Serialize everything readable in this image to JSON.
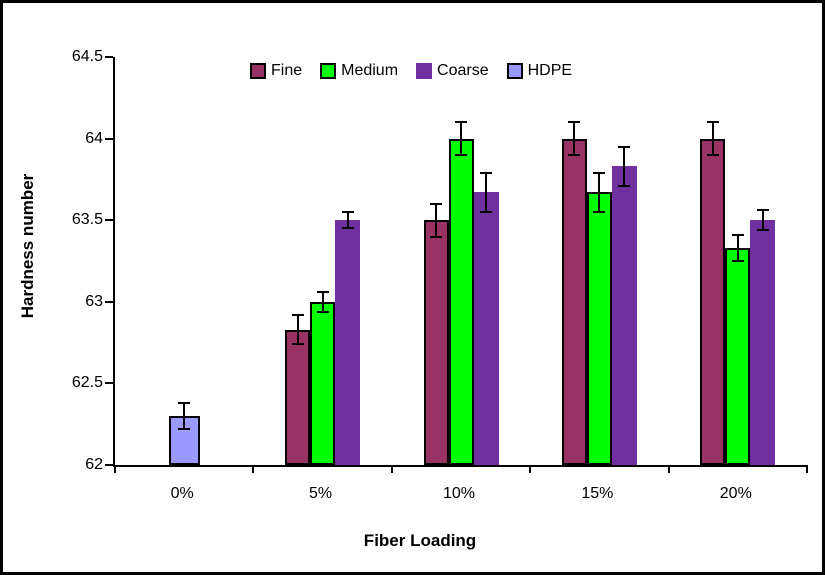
{
  "chart_data": {
    "type": "bar",
    "title": "",
    "xlabel": "Fiber Loading",
    "ylabel": "Hardness number",
    "categories": [
      "0%",
      "5%",
      "10%",
      "15%",
      "20%"
    ],
    "ylim": [
      62,
      64.5
    ],
    "ytick_step": 0.5,
    "ytick_labels": [
      "62",
      "62.5",
      "63",
      "63.5",
      "64",
      "64.5"
    ],
    "grid": false,
    "legend_position": "top-center",
    "error_bars": true,
    "axis_color": "#000000",
    "background_color": "#ffffff",
    "series": [
      {
        "name": "Fine",
        "color": "#993366",
        "border_color": "#000000",
        "values": [
          null,
          62.83,
          63.5,
          64.0,
          64.0
        ],
        "errors": [
          null,
          0.09,
          0.1,
          0.1,
          0.1
        ]
      },
      {
        "name": "Medium",
        "color": "#00FF00",
        "border_color": "#000000",
        "values": [
          null,
          63.0,
          64.0,
          63.67,
          63.33
        ],
        "errors": [
          null,
          0.06,
          0.1,
          0.12,
          0.08
        ]
      },
      {
        "name": "Coarse",
        "color": "#7030A0",
        "border_color": "#7030A0",
        "values": [
          null,
          63.5,
          63.67,
          63.83,
          63.5
        ],
        "errors": [
          null,
          0.05,
          0.12,
          0.12,
          0.06
        ]
      },
      {
        "name": "HDPE",
        "color": "#9999FF",
        "border_color": "#000000",
        "values": [
          62.3,
          null,
          null,
          null,
          null
        ],
        "errors": [
          0.08,
          null,
          null,
          null,
          null
        ]
      }
    ]
  }
}
